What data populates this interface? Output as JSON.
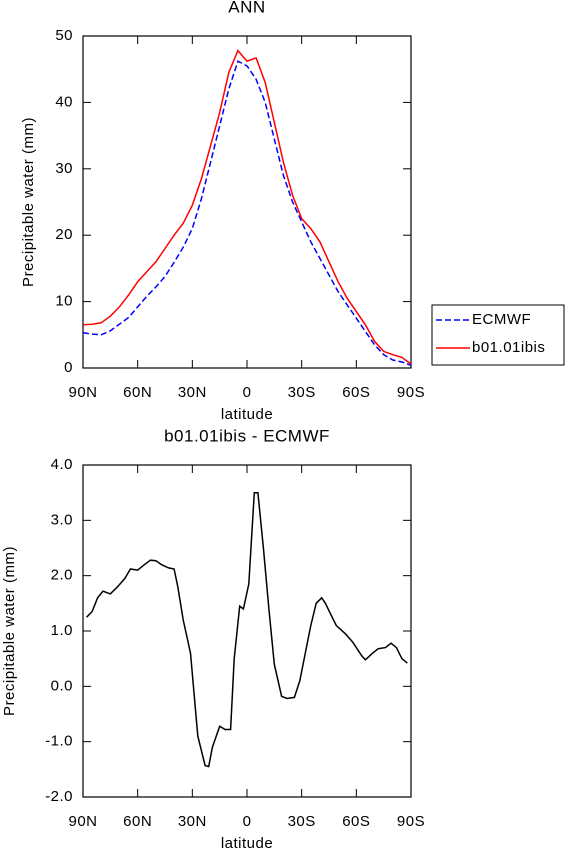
{
  "chart_data": [
    {
      "type": "line",
      "title": "ANN",
      "xlabel": "latitude",
      "ylabel": "Precipitable water (mm)",
      "x": [
        90,
        85,
        80,
        75,
        70,
        65,
        60,
        55,
        50,
        45,
        40,
        35,
        30,
        25,
        20,
        15,
        10,
        5,
        0,
        -5,
        -10,
        -15,
        -20,
        -25,
        -30,
        -35,
        -40,
        -45,
        -50,
        -55,
        -60,
        -65,
        -70,
        -75,
        -80,
        -85,
        -90
      ],
      "series": [
        {
          "name": "ECMWF",
          "color": "#0000ff",
          "linestyle": "dashed",
          "values": [
            5.3,
            5.1,
            5.0,
            5.6,
            6.6,
            7.6,
            9.2,
            10.8,
            12.2,
            13.8,
            15.9,
            18.2,
            21.0,
            25.5,
            31,
            36.5,
            42,
            46.2,
            45.5,
            43.5,
            40,
            34.5,
            29,
            25,
            22,
            19,
            16.5,
            14,
            11.5,
            9.5,
            7.5,
            5.5,
            3.5,
            2,
            1.2,
            0.9,
            0.4
          ]
        },
        {
          "name": "b01.01ibis",
          "color": "#ff0000",
          "linestyle": "solid",
          "values": [
            6.5,
            6.6,
            6.8,
            7.8,
            9.2,
            11,
            13,
            14.5,
            16,
            18,
            20,
            21.8,
            24.5,
            28.5,
            33.5,
            38.5,
            44.5,
            47.8,
            46.2,
            46.7,
            43,
            37,
            31,
            26,
            22.5,
            21,
            19,
            16,
            13,
            10.5,
            8.5,
            6.5,
            4,
            2.5,
            2,
            1.6,
            0.6
          ]
        }
      ],
      "xlim": [
        90,
        -90
      ],
      "ylim": [
        0,
        50
      ],
      "xticks": [
        {
          "value": 90,
          "label": "90N"
        },
        {
          "value": 60,
          "label": "60N"
        },
        {
          "value": 30,
          "label": "30N"
        },
        0,
        {
          "value": -30,
          "label": "30S"
        },
        {
          "value": -60,
          "label": "60S"
        },
        {
          "value": -90,
          "label": "90S"
        }
      ],
      "yticks": [
        0,
        10,
        20,
        30,
        40,
        50
      ],
      "legend": "right"
    },
    {
      "type": "line",
      "title": "b01.01ibis - ECMWF",
      "xlabel": "latitude",
      "ylabel": "Precipitable water (mm)",
      "x": [
        88,
        85,
        82,
        79,
        75,
        71,
        67,
        64,
        60,
        57,
        53,
        50,
        47,
        43,
        40,
        38,
        35,
        31,
        27,
        23,
        21,
        19,
        15,
        12,
        9,
        7,
        4,
        2,
        -1,
        -4,
        -6,
        -9,
        -12,
        -15,
        -19,
        -22,
        -26,
        -29,
        -32,
        -35,
        -38,
        -41,
        -43,
        -46,
        -49,
        -54,
        -58,
        -63,
        -65,
        -69,
        -72,
        -76,
        -79,
        -82,
        -85,
        -88
      ],
      "series": [
        {
          "color": "#000000",
          "linestyle": "solid",
          "values": [
            1.25,
            1.35,
            1.6,
            1.72,
            1.67,
            1.8,
            1.95,
            2.12,
            2.1,
            2.18,
            2.28,
            2.27,
            2.2,
            2.14,
            2.12,
            1.8,
            1.2,
            0.6,
            -0.9,
            -1.43,
            -1.45,
            -1.1,
            -0.72,
            -0.78,
            -0.78,
            0.5,
            1.45,
            1.4,
            1.85,
            3.5,
            3.5,
            2.5,
            1.4,
            0.4,
            -0.18,
            -0.22,
            -0.2,
            0.1,
            0.6,
            1.1,
            1.5,
            1.6,
            1.5,
            1.3,
            1.1,
            0.95,
            0.8,
            0.55,
            0.48,
            0.6,
            0.68,
            0.7,
            0.78,
            0.7,
            0.5,
            0.42
          ]
        }
      ],
      "xlim": [
        90,
        -90
      ],
      "ylim": [
        -2,
        4
      ],
      "xticks": [
        {
          "value": 90,
          "label": "90N"
        },
        {
          "value": 60,
          "label": "60N"
        },
        {
          "value": 30,
          "label": "30N"
        },
        0,
        {
          "value": -30,
          "label": "30S"
        },
        {
          "value": -60,
          "label": "60S"
        },
        {
          "value": -90,
          "label": "90S"
        }
      ],
      "yticks": [
        {
          "value": -2,
          "label": "-2.0"
        },
        {
          "value": -1,
          "label": "-1.0"
        },
        {
          "value": 0,
          "label": "0.0"
        },
        {
          "value": 1,
          "label": "1.0"
        },
        {
          "value": 2,
          "label": "2.0"
        },
        {
          "value": 3,
          "label": "3.0"
        },
        {
          "value": 4,
          "label": "4.0"
        }
      ]
    }
  ]
}
